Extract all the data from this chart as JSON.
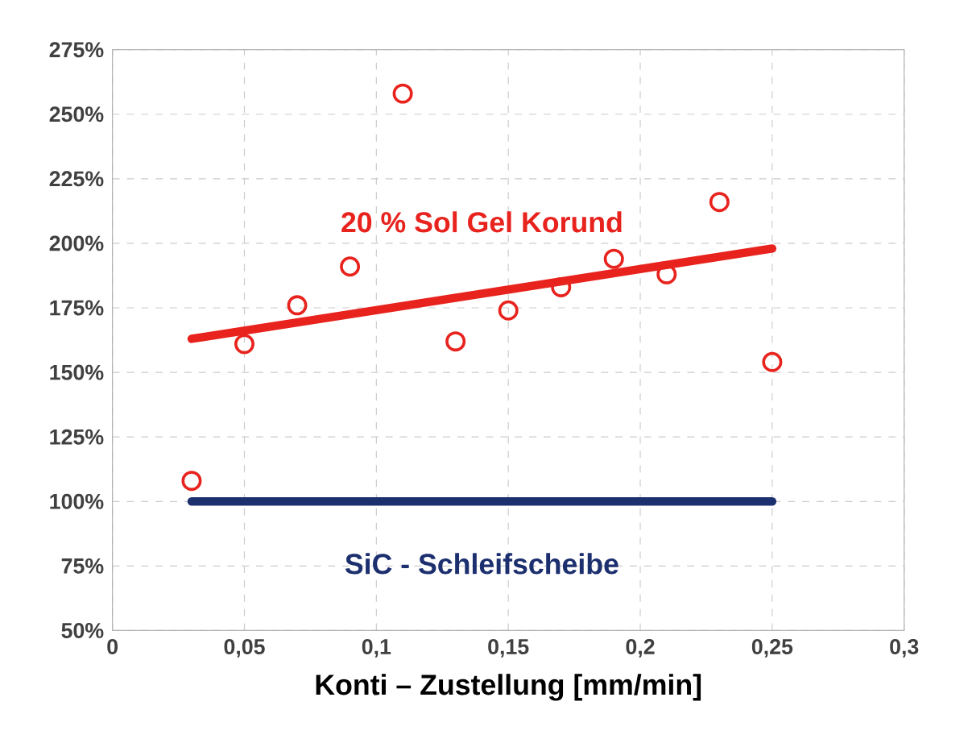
{
  "chart_data": {
    "type": "scatter",
    "xlabel": "Konti – Zustellung [mm/min]",
    "xlim": [
      0,
      0.3
    ],
    "ylim": [
      50,
      275
    ],
    "xticks": [
      {
        "value": 0,
        "label": "0"
      },
      {
        "value": 0.05,
        "label": "0,05"
      },
      {
        "value": 0.1,
        "label": "0,1"
      },
      {
        "value": 0.15,
        "label": "0,15"
      },
      {
        "value": 0.2,
        "label": "0,2"
      },
      {
        "value": 0.25,
        "label": "0,25"
      },
      {
        "value": 0.3,
        "label": "0,3"
      }
    ],
    "yticks": [
      {
        "value": 50,
        "label": "50%"
      },
      {
        "value": 75,
        "label": "75%"
      },
      {
        "value": 100,
        "label": "100%"
      },
      {
        "value": 125,
        "label": "125%"
      },
      {
        "value": 150,
        "label": "150%"
      },
      {
        "value": 175,
        "label": "175%"
      },
      {
        "value": 200,
        "label": "200%"
      },
      {
        "value": 225,
        "label": "225%"
      },
      {
        "value": 250,
        "label": "250%"
      },
      {
        "value": 275,
        "label": "275%"
      }
    ],
    "grid": true,
    "marker": "circle",
    "series": [
      {
        "color": "#e8231e",
        "x": [
          0.03,
          0.05,
          0.07,
          0.09,
          0.11,
          0.13,
          0.15,
          0.17,
          0.19,
          0.21,
          0.23,
          0.25
        ],
        "values": [
          108,
          161,
          176,
          191,
          258,
          162,
          174,
          183,
          194,
          188,
          216,
          154
        ]
      },
      {
        "type": "line",
        "name": "20 % Sol Gel Korund",
        "color": "#e8231e",
        "marker": "none",
        "x": [
          0.03,
          0.25
        ],
        "values": [
          163,
          198
        ]
      },
      {
        "type": "line",
        "name": "SiC - Schleifscheibe",
        "color": "#1c2f6e",
        "marker": "none",
        "x": [
          0.03,
          0.25
        ],
        "values": [
          100,
          100
        ]
      }
    ]
  }
}
